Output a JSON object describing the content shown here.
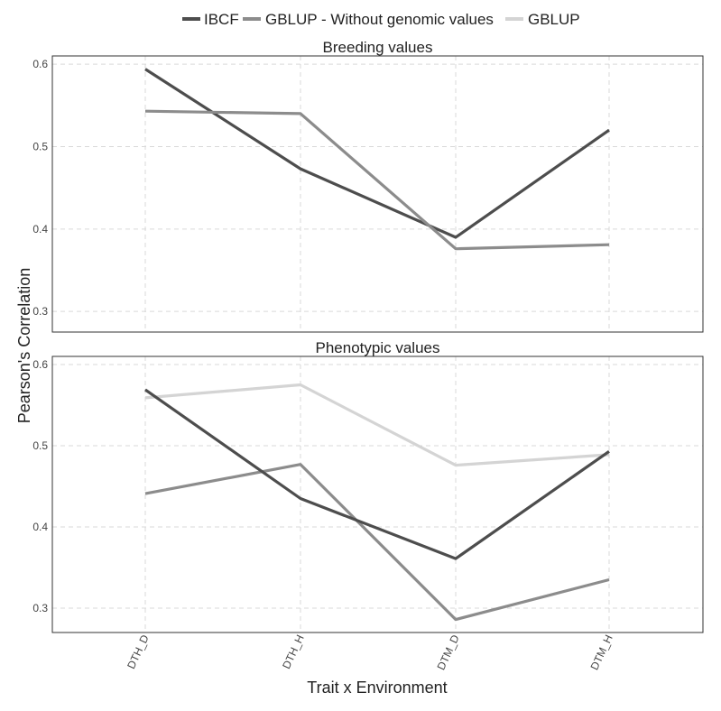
{
  "chart_data": {
    "type": "line",
    "categories": [
      "DTH_D",
      "DTH_H",
      "DTM_D",
      "DTM_H"
    ],
    "xlabel": "Trait x Environment",
    "ylabel": "Pearson's Correlation",
    "legend_position": "top",
    "grid": true,
    "series_legend": [
      {
        "name": "IBCF",
        "color": "#4d4d4d"
      },
      {
        "name": "GBLUP - Without genomic values",
        "color": "#8c8c8c"
      },
      {
        "name": "GBLUP",
        "color": "#d4d4d4"
      }
    ],
    "panels": [
      {
        "title": "Breeding values",
        "ylim": [
          0.275,
          0.61
        ],
        "yticks": [
          0.3,
          0.4,
          0.5,
          0.6
        ],
        "series": [
          {
            "name": "IBCF",
            "color": "#4d4d4d",
            "values": [
              0.594,
              0.473,
              0.39,
              0.52
            ]
          },
          {
            "name": "GBLUP - Without genomic values",
            "color": "#8c8c8c",
            "values": [
              0.543,
              0.54,
              0.376,
              0.381
            ]
          }
        ]
      },
      {
        "title": "Phenotypic values",
        "ylim": [
          0.27,
          0.61
        ],
        "yticks": [
          0.3,
          0.4,
          0.5,
          0.6
        ],
        "series": [
          {
            "name": "GBLUP",
            "color": "#d4d4d4",
            "values": [
              0.559,
              0.575,
              0.476,
              0.489
            ]
          },
          {
            "name": "GBLUP - Without genomic values",
            "color": "#8c8c8c",
            "values": [
              0.441,
              0.477,
              0.286,
              0.335
            ]
          },
          {
            "name": "IBCF",
            "color": "#4d4d4d",
            "values": [
              0.569,
              0.435,
              0.361,
              0.493
            ]
          }
        ]
      }
    ]
  }
}
